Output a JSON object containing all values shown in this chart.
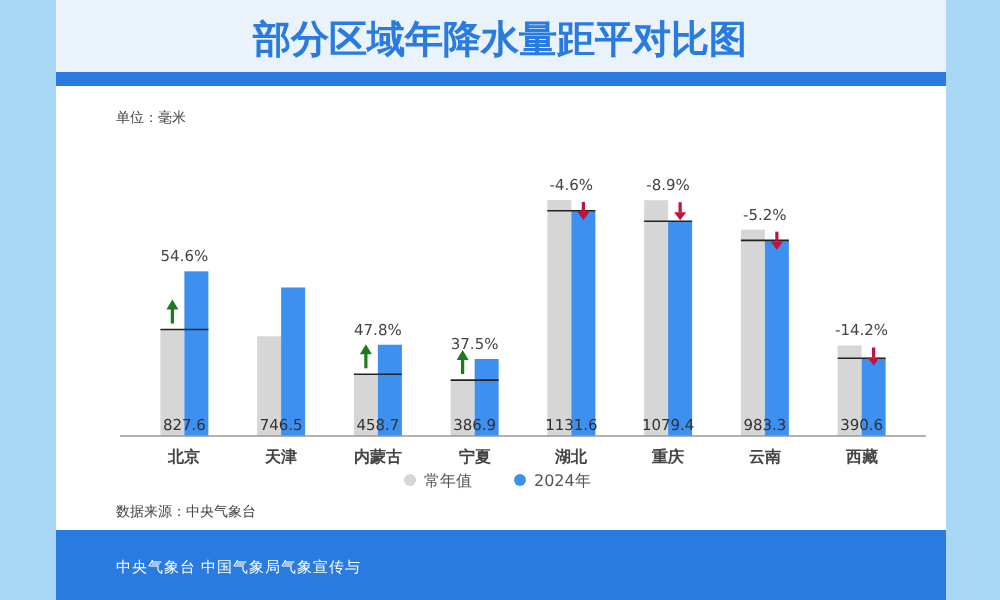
{
  "chart_data": {
    "type": "bar",
    "title": "部分区域年降水量距平对比图",
    "categories": [
      "北京",
      "天津",
      "内蒙古",
      "宁夏",
      "湖北",
      "重庆",
      "云南",
      "西藏"
    ],
    "series": [
      {
        "name": "常年值",
        "color": "#d6d6d6",
        "values": [
          535,
          501,
          310,
          281,
          1186,
          1185,
          1037,
          455
        ]
      },
      {
        "name": "2024年",
        "color": "#3d8ff0",
        "values": [
          827.6,
          746.5,
          458.7,
          386.9,
          1131.6,
          1079.4,
          983.3,
          390.6
        ],
        "value_labels": [
          "827.6",
          "746.5",
          "458.7",
          "386.9",
          "1131.6",
          "1079.4",
          "983.3",
          "390.6"
        ]
      }
    ],
    "annotations": [
      {
        "text": "54.6%",
        "x": "北京",
        "y": 827.6
      },
      {
        "text": "47.8%",
        "x": "内蒙古",
        "y": 458.7
      },
      {
        "text": "37.5%",
        "x": "宁夏",
        "y": 386.9
      },
      {
        "text": "-4.6%",
        "x": "湖北",
        "y": 1186
      },
      {
        "text": "-8.9%",
        "x": "重庆",
        "y": 1185
      },
      {
        "text": "-5.2%",
        "x": "云南",
        "y": 1037
      },
      {
        "text": "-14.2%",
        "x": "西藏",
        "y": 455
      },
      "单位：毫米",
      "数据来源：中央气象台",
      "中央气象台 中国气象局气象宣传与"
    ],
    "legend": "bottom"
  }
}
